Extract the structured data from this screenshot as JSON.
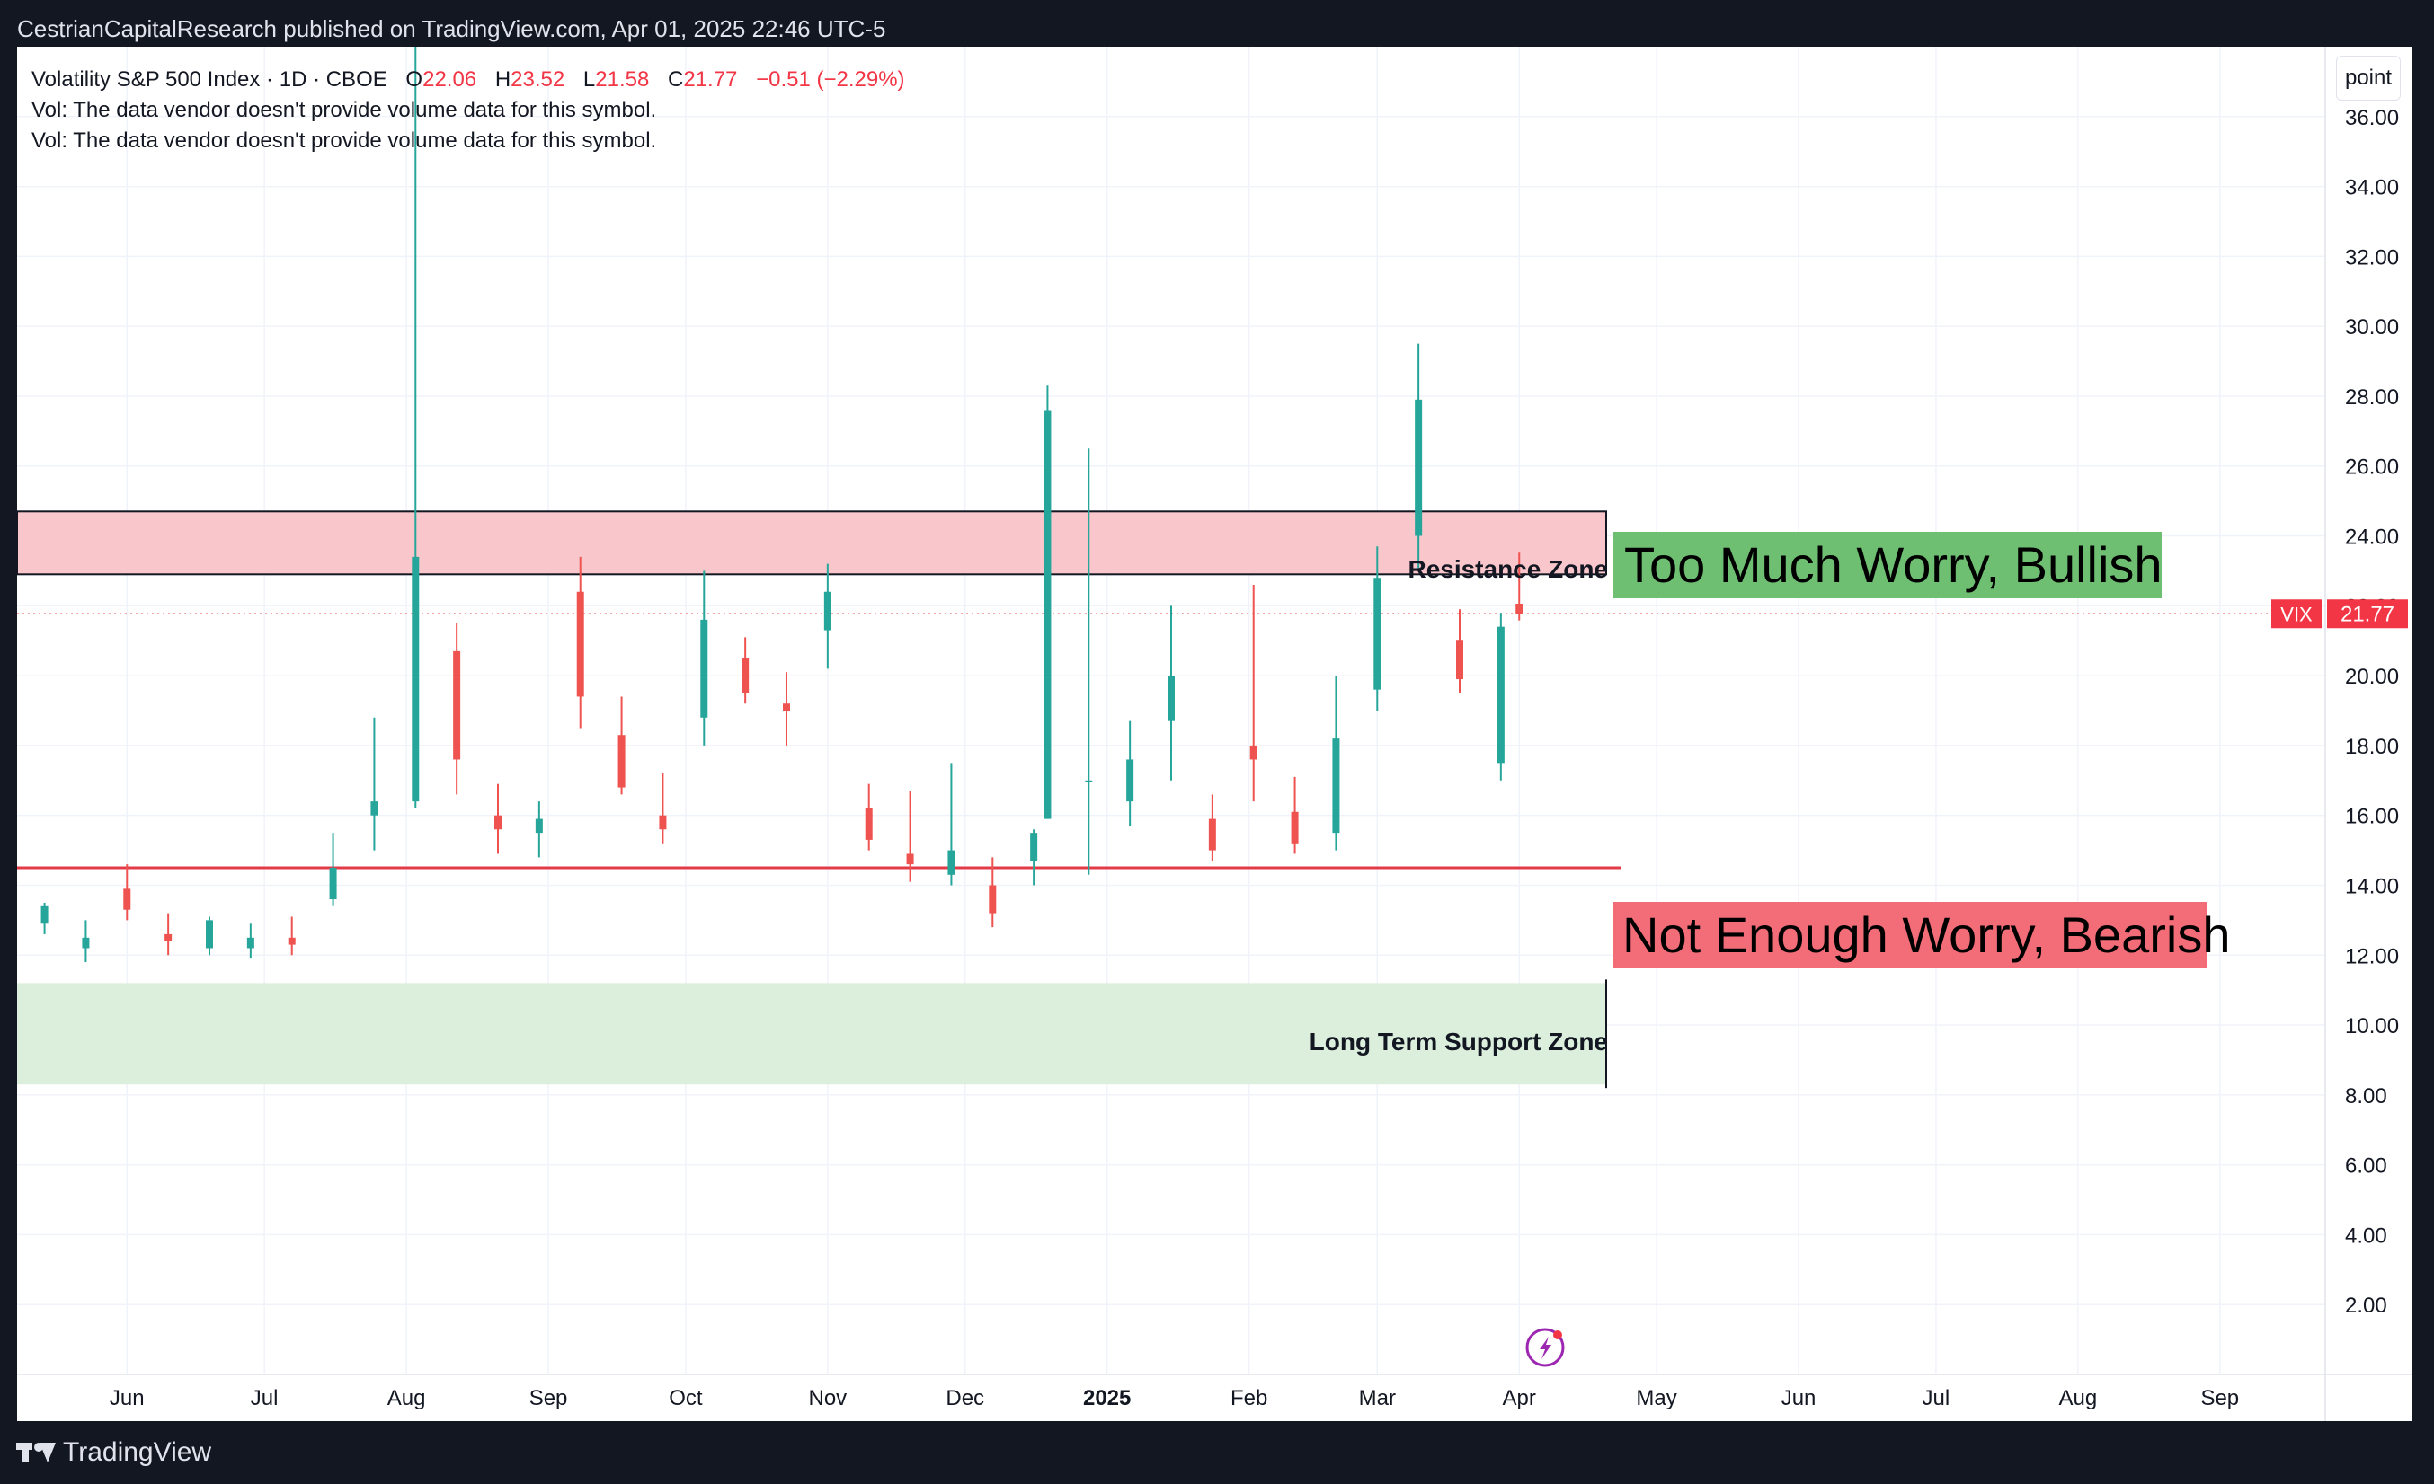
{
  "header": {
    "published": "CestrianCapitalResearch published on TradingView.com, Apr 01, 2025 22:46 UTC-5"
  },
  "legend": {
    "symbol": "Volatility S&P 500 Index · 1D · CBOE",
    "o_label": "O",
    "o_value": "22.06",
    "h_label": "H",
    "h_value": "23.52",
    "l_label": "L",
    "l_value": "21.58",
    "c_label": "C",
    "c_value": "21.77",
    "change": "−0.51 (−2.29%)",
    "vol_line_1": "Vol: The data vendor doesn't provide volume data for this symbol.",
    "vol_line_2": "Vol: The data vendor doesn't provide volume data for this symbol."
  },
  "unit_button": "point",
  "annotations": {
    "bullish": "Too Much Worry, Bullish",
    "bearish": "Not Enough Worry, Bearish",
    "resistance": "Resistance Zone",
    "support": "Long Term Support Zone"
  },
  "price_tag": {
    "symbol": "VIX",
    "value": "21.77"
  },
  "footer": {
    "brand": "TradingView"
  },
  "colors": {
    "up": "#26a69a",
    "down": "#ef5350",
    "resistance_fill": "#f8c6cb",
    "support_fill": "#dcefdd",
    "level_line": "#e23b47",
    "bullish_box": "#6fbf73",
    "bearish_box": "#f26d78"
  },
  "chart_data": {
    "type": "candlestick",
    "symbol": "VIX",
    "interval": "1D",
    "y_axis": {
      "ticks": [
        "2.00",
        "4.00",
        "6.00",
        "8.00",
        "10.00",
        "12.00",
        "14.00",
        "16.00",
        "18.00",
        "20.00",
        "22.00",
        "24.00",
        "26.00",
        "28.00",
        "30.00",
        "32.00",
        "34.00",
        "36.00"
      ],
      "range": [
        0,
        38
      ]
    },
    "x_axis": {
      "ticks": [
        "Jun",
        "Jul",
        "Aug",
        "Sep",
        "Oct",
        "Nov",
        "Dec",
        "2025",
        "Feb",
        "Mar",
        "Apr",
        "May",
        "Jun",
        "Jul",
        "Aug",
        "Sep"
      ]
    },
    "last_close": 21.77,
    "resistance_zone": [
      22.9,
      24.7
    ],
    "support_zone": [
      8.3,
      11.2
    ],
    "level_line": 14.5,
    "series": [
      {
        "date": "2024-05-14",
        "o": 12.9,
        "h": 13.5,
        "l": 12.6,
        "c": 13.4
      },
      {
        "date": "2024-05-23",
        "o": 12.2,
        "h": 13.0,
        "l": 11.8,
        "c": 12.5
      },
      {
        "date": "2024-06-01",
        "o": 13.9,
        "h": 14.6,
        "l": 13.0,
        "c": 13.3
      },
      {
        "date": "2024-06-10",
        "o": 12.6,
        "h": 13.2,
        "l": 12.0,
        "c": 12.4
      },
      {
        "date": "2024-06-19",
        "o": 12.2,
        "h": 13.1,
        "l": 12.0,
        "c": 13.0
      },
      {
        "date": "2024-06-28",
        "o": 12.2,
        "h": 12.9,
        "l": 11.9,
        "c": 12.5
      },
      {
        "date": "2024-07-07",
        "o": 12.5,
        "h": 13.1,
        "l": 12.0,
        "c": 12.3
      },
      {
        "date": "2024-07-16",
        "o": 13.6,
        "h": 15.5,
        "l": 13.4,
        "c": 14.5
      },
      {
        "date": "2024-07-25",
        "o": 16.0,
        "h": 18.8,
        "l": 15.0,
        "c": 16.4
      },
      {
        "date": "2024-08-03",
        "o": 16.4,
        "h": 38.3,
        "l": 16.2,
        "c": 23.4
      },
      {
        "date": "2024-08-12",
        "o": 20.7,
        "h": 21.5,
        "l": 16.6,
        "c": 17.6
      },
      {
        "date": "2024-08-21",
        "o": 16.0,
        "h": 16.9,
        "l": 14.9,
        "c": 15.6
      },
      {
        "date": "2024-08-30",
        "o": 15.5,
        "h": 16.4,
        "l": 14.8,
        "c": 15.9
      },
      {
        "date": "2024-09-08",
        "o": 22.4,
        "h": 23.4,
        "l": 18.5,
        "c": 19.4
      },
      {
        "date": "2024-09-17",
        "o": 18.3,
        "h": 19.4,
        "l": 16.6,
        "c": 16.8
      },
      {
        "date": "2024-09-26",
        "o": 16.0,
        "h": 17.2,
        "l": 15.2,
        "c": 15.6
      },
      {
        "date": "2024-10-05",
        "o": 18.8,
        "h": 23.0,
        "l": 18.0,
        "c": 21.6
      },
      {
        "date": "2024-10-14",
        "o": 20.5,
        "h": 21.1,
        "l": 19.2,
        "c": 19.5
      },
      {
        "date": "2024-10-23",
        "o": 19.2,
        "h": 20.1,
        "l": 18.0,
        "c": 19.0
      },
      {
        "date": "2024-11-01",
        "o": 21.3,
        "h": 23.2,
        "l": 20.2,
        "c": 22.4
      },
      {
        "date": "2024-11-10",
        "o": 16.2,
        "h": 16.9,
        "l": 15.0,
        "c": 15.3
      },
      {
        "date": "2024-11-19",
        "o": 14.9,
        "h": 16.7,
        "l": 14.1,
        "c": 14.6
      },
      {
        "date": "2024-11-28",
        "o": 14.3,
        "h": 17.5,
        "l": 14.0,
        "c": 15.0
      },
      {
        "date": "2024-12-07",
        "o": 14.0,
        "h": 14.8,
        "l": 12.8,
        "c": 13.2
      },
      {
        "date": "2024-12-16",
        "o": 14.7,
        "h": 15.6,
        "l": 14.0,
        "c": 15.5
      },
      {
        "date": "2024-12-19",
        "o": 15.9,
        "h": 28.3,
        "l": 15.9,
        "c": 27.6
      },
      {
        "date": "2024-12-28",
        "o": 17.0,
        "h": 26.5,
        "l": 14.3,
        "c": 17.0
      },
      {
        "date": "2025-01-06",
        "o": 16.4,
        "h": 18.7,
        "l": 15.7,
        "c": 17.6
      },
      {
        "date": "2025-01-15",
        "o": 18.7,
        "h": 22.0,
        "l": 17.0,
        "c": 20.0
      },
      {
        "date": "2025-01-24",
        "o": 15.9,
        "h": 16.6,
        "l": 14.7,
        "c": 15.0
      },
      {
        "date": "2025-02-02",
        "o": 18.0,
        "h": 22.6,
        "l": 16.4,
        "c": 17.6
      },
      {
        "date": "2025-02-11",
        "o": 16.1,
        "h": 17.1,
        "l": 14.9,
        "c": 15.2
      },
      {
        "date": "2025-02-20",
        "o": 15.5,
        "h": 20.0,
        "l": 15.0,
        "c": 18.2
      },
      {
        "date": "2025-03-01",
        "o": 19.6,
        "h": 23.7,
        "l": 19.0,
        "c": 22.8
      },
      {
        "date": "2025-03-10",
        "o": 24.0,
        "h": 29.5,
        "l": 23.0,
        "c": 27.9
      },
      {
        "date": "2025-03-19",
        "o": 21.0,
        "h": 21.9,
        "l": 19.5,
        "c": 19.9
      },
      {
        "date": "2025-03-28",
        "o": 17.5,
        "h": 21.8,
        "l": 17.0,
        "c": 21.4
      },
      {
        "date": "2025-04-01",
        "o": 22.06,
        "h": 23.52,
        "l": 21.58,
        "c": 21.77
      }
    ]
  }
}
